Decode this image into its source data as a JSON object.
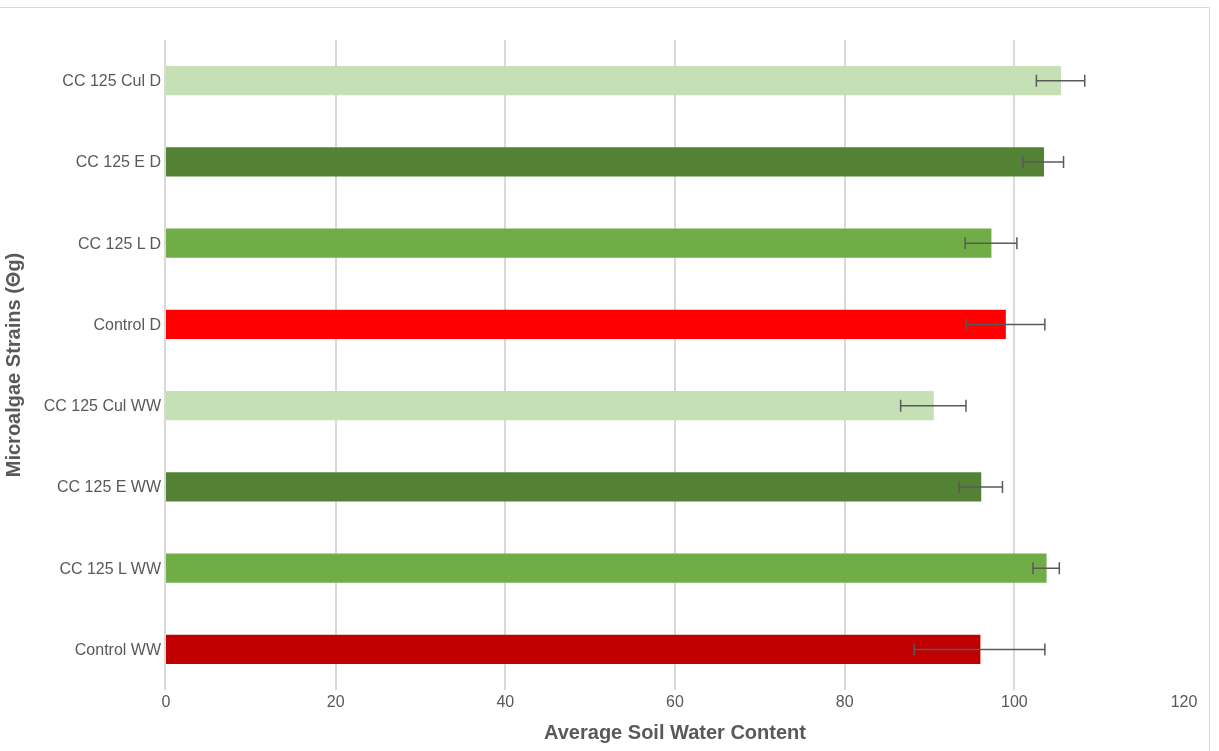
{
  "chart_data": {
    "type": "bar",
    "orientation": "horizontal",
    "xlabel": "Average Soil Water Content",
    "ylabel": "Microalgae Strains (Θg)",
    "categories": [
      "CC 125 Cul D",
      "CC 125 E D",
      "CC 125 L D",
      "Control D",
      "CC 125 Cul WW",
      "CC 125 E WW",
      "CC 125 L WW",
      "Control WW"
    ],
    "values": [
      105.5,
      103.5,
      97.3,
      99.0,
      90.5,
      96.1,
      103.8,
      96.0
    ],
    "colors": [
      "#c5e0b4",
      "#548235",
      "#70ad47",
      "#ff0000",
      "#c5e0b4",
      "#548235",
      "#70ad47",
      "#c00000"
    ],
    "errors": [
      [
        102.6,
        108.3
      ],
      [
        101.0,
        105.8
      ],
      [
        94.2,
        100.3
      ],
      [
        94.3,
        103.6
      ],
      [
        86.6,
        94.3
      ],
      [
        93.5,
        98.6
      ],
      [
        102.2,
        105.3
      ],
      [
        88.2,
        103.6
      ]
    ],
    "xlim": [
      0,
      120
    ],
    "xticks": [
      0,
      20,
      40,
      60,
      80,
      100,
      120
    ],
    "grid": "x",
    "legend": false
  }
}
